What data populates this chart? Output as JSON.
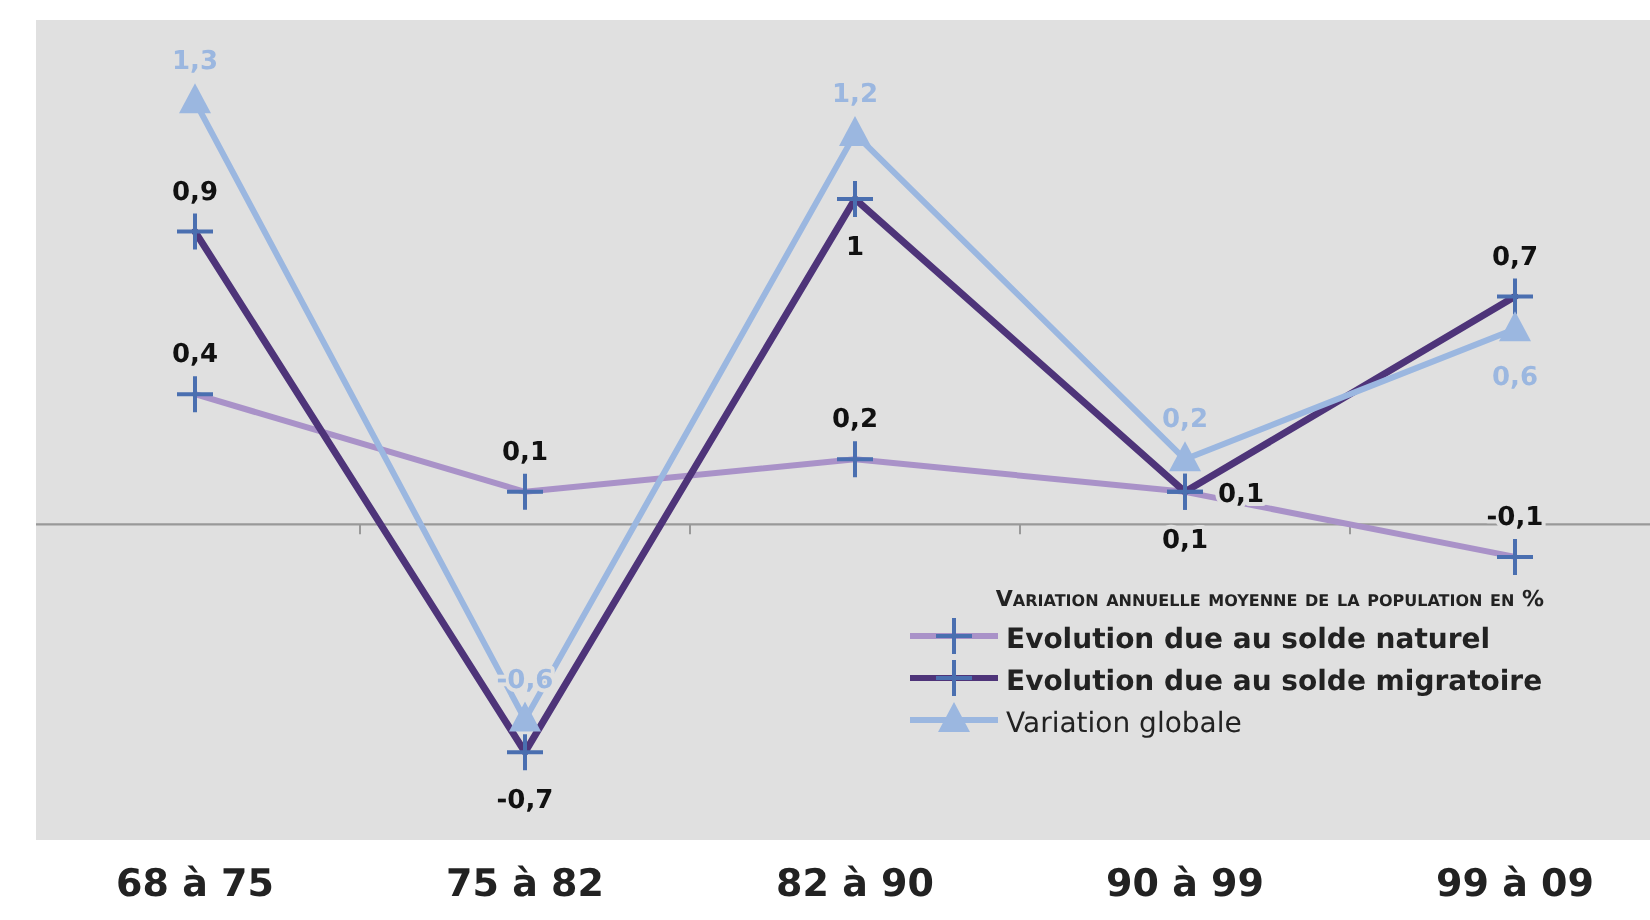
{
  "chart_data": {
    "type": "line",
    "categories": [
      "68 à 75",
      "75 à 82",
      "82 à 90",
      "90 à 99",
      "99 à 09"
    ],
    "ylim": [
      -0.97,
      1.55
    ],
    "tick_labels": "x",
    "legend": "bottom right",
    "legend_title": "Variation annuelle moyenne de la population en %",
    "series": [
      {
        "name": "Evolution due au solde naturel",
        "color": "#a992c8",
        "marker": "cross",
        "values": [
          0.4,
          0.1,
          0.2,
          0.1,
          -0.1
        ],
        "value_labels": [
          "0,4",
          "0,1",
          "0,2",
          "0,1",
          "-0,1"
        ]
      },
      {
        "name": "Evolution due au solde migratoire",
        "color": "#4e3479",
        "marker": "cross",
        "values": [
          0.9,
          -0.7,
          1,
          0.1,
          0.7
        ],
        "value_labels": [
          "0,9",
          "-0,7",
          "1",
          "0,1",
          "0,7"
        ]
      },
      {
        "name": "Variation globale",
        "color": "#9bb7e0",
        "marker": "triangle",
        "values": [
          1.3,
          -0.6,
          1.2,
          0.2,
          0.6
        ],
        "value_labels": [
          "1,3",
          "-0,6",
          "1,2",
          "0,2",
          "0,6"
        ]
      }
    ]
  }
}
